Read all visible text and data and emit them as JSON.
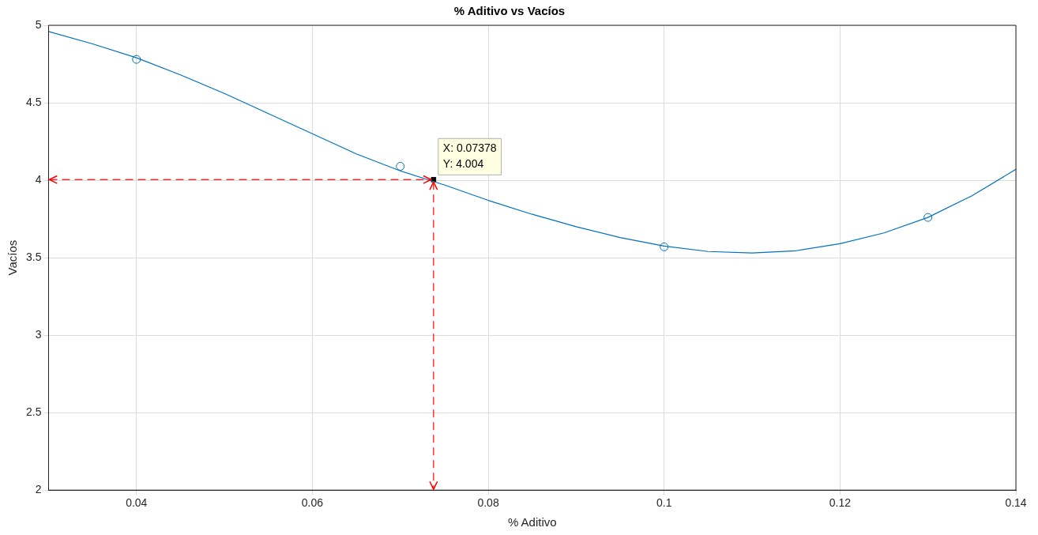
{
  "chart_data": {
    "type": "line",
    "title": "% Aditivo vs Vacíos",
    "xlabel": "% Aditivo",
    "ylabel": "Vacíos",
    "xlim": [
      0.03,
      0.14
    ],
    "xticks": [
      0.04,
      0.06,
      0.08,
      0.1,
      0.12,
      0.14
    ],
    "ylim": [
      2,
      5
    ],
    "yticks": [
      2,
      2.5,
      3,
      3.5,
      4,
      4.5,
      5
    ],
    "grid": true,
    "legend": false,
    "series": [
      {
        "marker": "none",
        "line_style": "solid",
        "color": "#0072bd",
        "x": [
          0.03,
          0.035,
          0.04,
          0.045,
          0.05,
          0.055,
          0.06,
          0.065,
          0.07,
          0.075,
          0.08,
          0.085,
          0.09,
          0.095,
          0.1,
          0.105,
          0.11,
          0.115,
          0.12,
          0.125,
          0.13,
          0.135,
          0.14
        ],
        "values": [
          4.96,
          4.88,
          4.79,
          4.68,
          4.56,
          4.43,
          4.3,
          4.17,
          4.06,
          3.97,
          3.87,
          3.78,
          3.7,
          3.63,
          3.575,
          3.54,
          3.53,
          3.545,
          3.59,
          3.66,
          3.76,
          3.9,
          4.07
        ]
      },
      {
        "type": "scatter",
        "marker": "circle",
        "color": "#0072bd",
        "x": [
          0.04,
          0.07,
          0.1,
          0.13
        ],
        "values": [
          4.78,
          4.09,
          3.57,
          3.76
        ]
      },
      {
        "type": "scatter",
        "marker": "square",
        "color": "#000000",
        "x": [
          0.07378
        ],
        "values": [
          4.004
        ]
      }
    ],
    "annotations": [
      {
        "text": "X: 0.07378\nY: 4.004",
        "x": 0.07378,
        "y": 4.004
      }
    ]
  }
}
